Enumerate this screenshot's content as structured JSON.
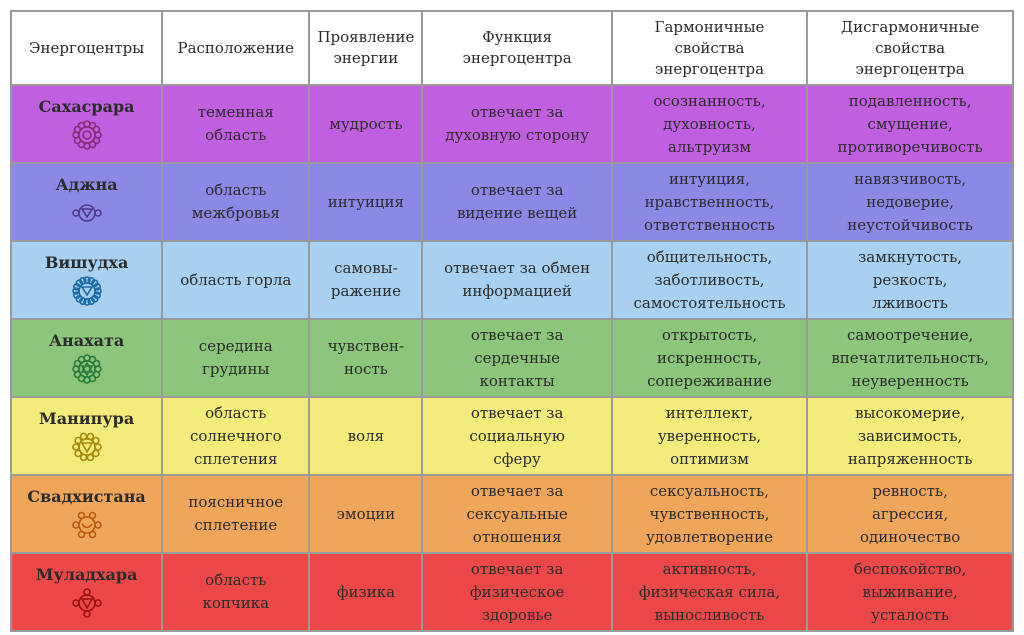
{
  "headers": {
    "col1": [
      "Энергоцентры"
    ],
    "col2": [
      "Расположение"
    ],
    "col3": [
      "Проявление",
      "энергии"
    ],
    "col4": [
      "Функция",
      "энергоцентра"
    ],
    "col5": [
      "Гармоничные",
      "свойства",
      "энергоцентра"
    ],
    "col6": [
      "Дисгармоничные",
      "свойства",
      "энергоцентра"
    ]
  },
  "rows": [
    {
      "name": "Сахасрара",
      "color": "#c060e0",
      "symbol_color": "#8a2a78",
      "icon": "sahasrara-lotus",
      "location": [
        "теменная",
        "область"
      ],
      "manifestation": [
        "мудрость"
      ],
      "function": [
        "отвечает за",
        "духовную сторону"
      ],
      "harmonious": [
        "осознанность,",
        "духовность,",
        "альтруизм"
      ],
      "disharmonious": [
        "подавленность,",
        "смущение,",
        "противоречивость"
      ]
    },
    {
      "name": "Аджна",
      "color": "#8c88e6",
      "symbol_color": "#4a3a90",
      "icon": "ajna-lotus",
      "location": [
        "область",
        "межбровья"
      ],
      "manifestation": [
        "интуиция"
      ],
      "function": [
        "отвечает за",
        "видение вещей"
      ],
      "harmonious": [
        "интуиция,",
        "нравственность,",
        "ответственность"
      ],
      "disharmonious": [
        "навязчивость,",
        "недоверие,",
        "неустойчивость"
      ]
    },
    {
      "name": "Вишудха",
      "color": "#a8d0f0",
      "symbol_color": "#1a6aa8",
      "icon": "vishuddha-lotus",
      "location": [
        "область горла"
      ],
      "manifestation": [
        "самовы-",
        "ражение"
      ],
      "function": [
        "отвечает за обмен",
        "информацией"
      ],
      "harmonious": [
        "общительность,",
        "заботливость,",
        "самостоятельность"
      ],
      "disharmonious": [
        "замкнутость,",
        "резкость,",
        "лживость"
      ]
    },
    {
      "name": "Анахата",
      "color": "#8cc67a",
      "symbol_color": "#2a7a3a",
      "icon": "anahata-lotus",
      "location": [
        "середина",
        "грудины"
      ],
      "manifestation": [
        "чувствен-",
        "ность"
      ],
      "function": [
        "отвечает за",
        "сердечные",
        "контакты"
      ],
      "harmonious": [
        "открытость,",
        "искренность,",
        "сопереживание"
      ],
      "disharmonious": [
        "самоотречение,",
        "впечатлительность,",
        "неуверенность"
      ]
    },
    {
      "name": "Манипура",
      "color": "#f4ec7a",
      "symbol_color": "#a88a10",
      "icon": "manipura-lotus",
      "location": [
        "область",
        "солнечного",
        "сплетения"
      ],
      "manifestation": [
        "воля"
      ],
      "function": [
        "отвечает за",
        "социальную",
        "сферу"
      ],
      "harmonious": [
        "интеллект,",
        "уверенность,",
        "оптимизм"
      ],
      "disharmonious": [
        "высокомерие,",
        "зависимость,",
        "напряженность"
      ]
    },
    {
      "name": "Свадхистана",
      "color": "#f0a65a",
      "symbol_color": "#b85a10",
      "icon": "svadhisthana-lotus",
      "location": [
        "поясничное",
        "сплетение"
      ],
      "manifestation": [
        "эмоции"
      ],
      "function": [
        "отвечает за",
        "сексуальные",
        "отношения"
      ],
      "harmonious": [
        "сексуальность,",
        "чувственность,",
        "удовлетворение"
      ],
      "disharmonious": [
        "ревность,",
        "агрессия,",
        "одиночество"
      ]
    },
    {
      "name": "Муладхара",
      "color": "#ec4848",
      "symbol_color": "#9a1010",
      "icon": "muladhara-lotus",
      "location": [
        "область",
        "копчика"
      ],
      "manifestation": [
        "физика"
      ],
      "function": [
        "отвечает за",
        "физическое",
        "здоровье"
      ],
      "harmonious": [
        "активность,",
        "физическая сила,",
        "выносливость"
      ],
      "disharmonious": [
        "беспокойство,",
        "выживание,",
        "усталость"
      ]
    }
  ]
}
